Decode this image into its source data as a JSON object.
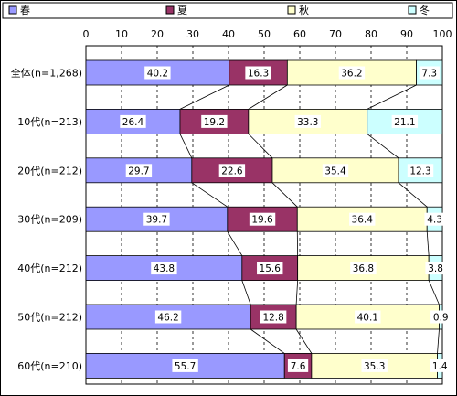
{
  "chart_data": {
    "type": "bar",
    "orientation": "horizontal",
    "stacked": true,
    "percent_stacked": true,
    "categories": [
      "全体(n=1,268)",
      "10代(n=213)",
      "20代(n=212)",
      "30代(n=209)",
      "40代(n=212)",
      "50代(n=212)",
      "60代(n=210)"
    ],
    "series": [
      {
        "name": "春",
        "color": "#9999ff",
        "values": [
          40.2,
          26.4,
          29.7,
          39.7,
          43.8,
          46.2,
          55.7
        ]
      },
      {
        "name": "夏",
        "color": "#993366",
        "values": [
          16.3,
          19.2,
          22.6,
          19.6,
          15.6,
          12.8,
          7.6
        ]
      },
      {
        "name": "秋",
        "color": "#ffffcc",
        "values": [
          36.2,
          33.3,
          35.4,
          36.4,
          36.8,
          40.1,
          35.3
        ]
      },
      {
        "name": "冬",
        "color": "#ccffff",
        "values": [
          7.3,
          21.1,
          12.3,
          4.3,
          3.8,
          0.9,
          1.4
        ]
      }
    ],
    "xlim": [
      0,
      100
    ],
    "xticks": [
      0,
      10,
      20,
      30,
      40,
      50,
      60,
      70,
      80,
      90,
      100
    ],
    "grid": "vertical dashed",
    "legend": "top",
    "series_lines": true,
    "data_labels": true
  }
}
